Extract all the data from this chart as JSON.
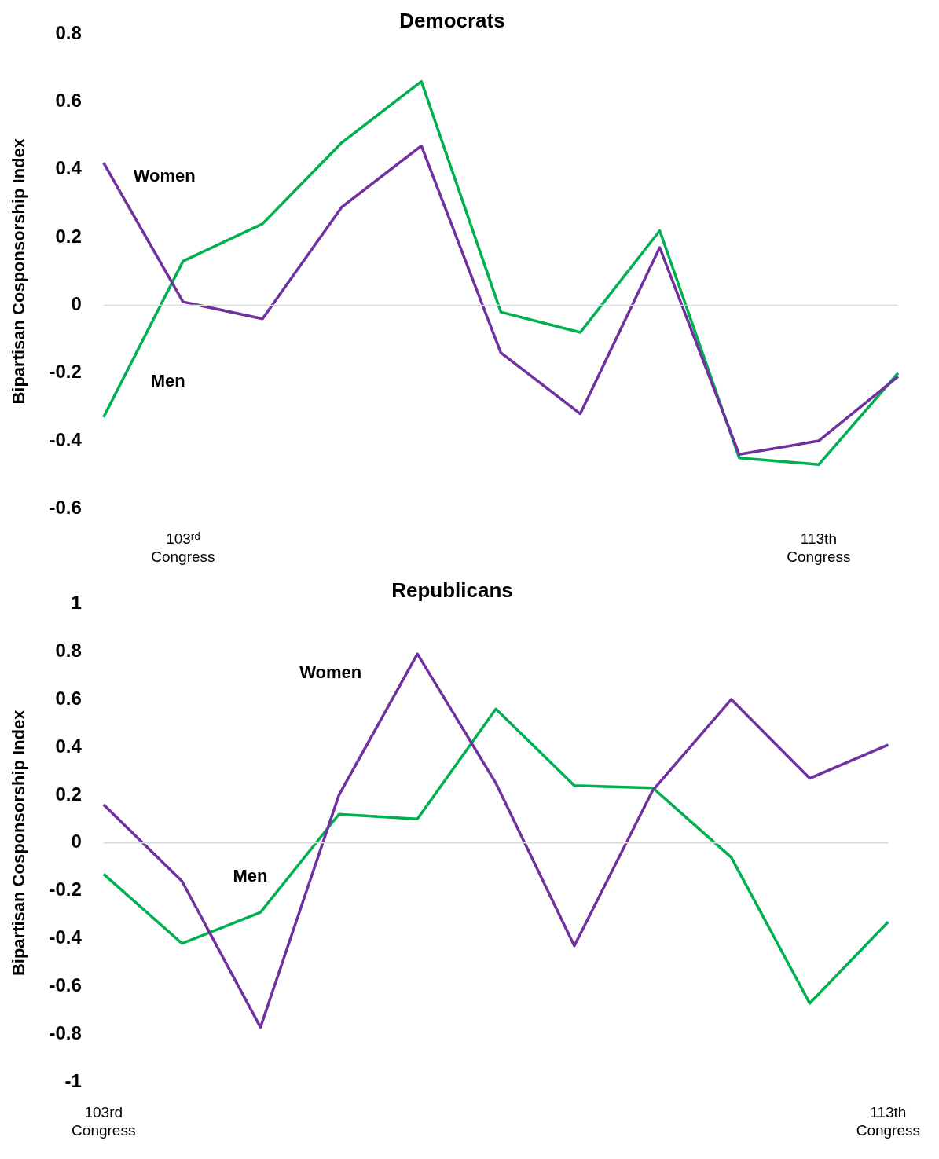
{
  "chart_data": [
    {
      "type": "line",
      "title": "Democrats",
      "ylabel": "Bipartisan Cosponsorship Index",
      "categories": [
        null,
        "103ʳᵈ Congress",
        null,
        null,
        null,
        null,
        null,
        null,
        null,
        "113th Congress",
        null
      ],
      "ylim": [
        -0.6,
        0.8
      ],
      "yticks": [
        -0.6,
        -0.4,
        -0.2,
        0,
        0.2,
        0.4,
        0.6,
        0.8
      ],
      "ref_lines": [
        {
          "axis": "y",
          "value": 0,
          "color": "#d9d9d9"
        }
      ],
      "grid": false,
      "legend": false,
      "marker": "none",
      "line_style": "solid",
      "series": [
        {
          "name": "Women",
          "color": "#7030a0",
          "values": [
            0.42,
            0.01,
            -0.04,
            0.29,
            0.47,
            -0.14,
            -0.32,
            0.17,
            -0.44,
            -0.4,
            -0.21
          ]
        },
        {
          "name": "Men",
          "color": "#00b050",
          "values": [
            -0.33,
            0.13,
            0.24,
            0.48,
            0.66,
            -0.02,
            -0.08,
            0.22,
            -0.45,
            -0.47,
            -0.2
          ]
        }
      ]
    },
    {
      "type": "line",
      "title": "Republicans",
      "ylabel": "Bipartisan Cosponsorship Index",
      "categories": [
        "103rd Congress",
        null,
        null,
        null,
        null,
        null,
        null,
        null,
        null,
        null,
        "113th Congress"
      ],
      "ylim": [
        -1,
        1
      ],
      "yticks": [
        -1,
        -0.8,
        -0.6,
        -0.4,
        -0.2,
        0,
        0.2,
        0.4,
        0.6,
        0.8,
        1
      ],
      "ref_lines": [
        {
          "axis": "y",
          "value": 0,
          "color": "#d9d9d9"
        }
      ],
      "grid": false,
      "legend": false,
      "marker": "none",
      "line_style": "solid",
      "series": [
        {
          "name": "Women",
          "color": "#7030a0",
          "values": [
            0.16,
            -0.16,
            -0.77,
            0.2,
            0.79,
            0.25,
            -0.43,
            0.22,
            0.6,
            0.27,
            0.41
          ]
        },
        {
          "name": "Men",
          "color": "#00b050",
          "values": [
            -0.13,
            -0.42,
            -0.29,
            0.12,
            0.1,
            0.56,
            0.24,
            0.23,
            -0.06,
            -0.67,
            -0.33
          ]
        }
      ]
    }
  ]
}
